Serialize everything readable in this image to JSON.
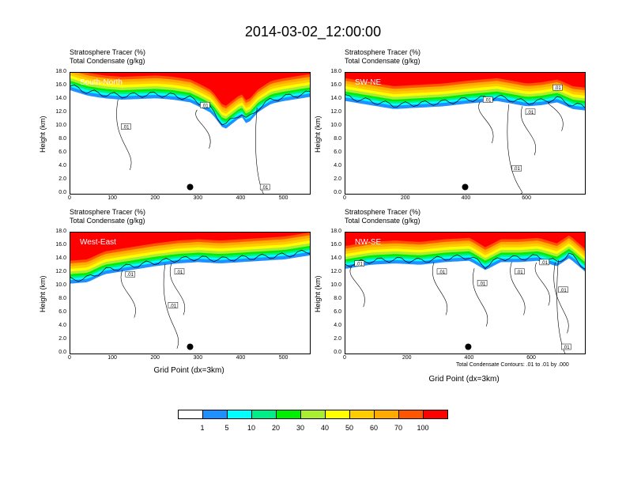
{
  "title": "2014-03-02_12:00:00",
  "field_labels": [
    "Stratosphere Tracer   (%)",
    "Total Condensate   (g/kg)"
  ],
  "y_axis_label": "Height (km)",
  "x_axis_label": "Grid Point (dx=3km)",
  "footnote": "Total Condensate Contours: .01 to .01 by .000",
  "colors": [
    "#ffffff",
    "#1e90ff",
    "#00ffff",
    "#00ee88",
    "#00ee00",
    "#aaee33",
    "#ffff00",
    "#ffcc00",
    "#ffaa00",
    "#ff5500",
    "#ff0000"
  ],
  "chart_data": [
    {
      "type": "heatmap",
      "panel_label": "South-North",
      "ylim": [
        0,
        18
      ],
      "xlim": [
        0,
        560
      ],
      "y_ticks": [
        "0.0",
        "2.0",
        "4.0",
        "6.0",
        "8.0",
        "10.0",
        "12.0",
        "14.0",
        "16.0",
        "18.0"
      ],
      "x_ticks": [
        0,
        100,
        200,
        300,
        400,
        500
      ],
      "tracer_top_profile": {
        "x": [
          0,
          40,
          80,
          120,
          160,
          200,
          240,
          280,
          300,
          330,
          360,
          380,
          400,
          410,
          420,
          440,
          470,
          500,
          540,
          560
        ],
        "h": [
          15.4,
          14.6,
          14.2,
          14.0,
          14.1,
          14.2,
          14.0,
          13.6,
          13.0,
          12.0,
          9.5,
          10.5,
          11.5,
          10.5,
          10.8,
          12.2,
          13.4,
          13.8,
          14.2,
          14.4
        ]
      },
      "contour_labels": [
        {
          "x": 130,
          "y": 10.0,
          "text": ".01"
        },
        {
          "x": 315,
          "y": 13.2,
          "text": ".01"
        },
        {
          "x": 455,
          "y": 1.0,
          "text": ".01"
        }
      ],
      "marker": {
        "x": 280,
        "y": 1.0
      }
    },
    {
      "type": "heatmap",
      "panel_label": "SW-NE",
      "ylim": [
        0,
        18
      ],
      "xlim": [
        0,
        790
      ],
      "y_ticks": [
        "0.0",
        "2.0",
        "4.0",
        "6.0",
        "8.0",
        "10.0",
        "12.0",
        "14.0",
        "16.0",
        "18.0"
      ],
      "x_ticks": [
        0,
        200,
        400,
        600
      ],
      "tracer_top_profile": {
        "x": [
          0,
          80,
          160,
          240,
          320,
          400,
          450,
          500,
          550,
          600,
          650,
          700,
          750,
          790
        ],
        "h": [
          13.8,
          13.2,
          12.6,
          12.8,
          13.0,
          13.4,
          13.6,
          13.8,
          13.4,
          13.0,
          13.2,
          13.6,
          12.6,
          12.4
        ]
      },
      "contour_labels": [
        {
          "x": 470,
          "y": 14.0,
          "text": ".01"
        },
        {
          "x": 610,
          "y": 12.2,
          "text": ".01"
        },
        {
          "x": 700,
          "y": 15.8,
          "text": ".01"
        },
        {
          "x": 565,
          "y": 3.8,
          "text": ".01"
        }
      ],
      "marker": {
        "x": 395,
        "y": 1.0
      }
    },
    {
      "type": "heatmap",
      "panel_label": "West-East",
      "ylim": [
        0,
        18
      ],
      "xlim": [
        0,
        560
      ],
      "y_ticks": [
        "0.0",
        "2.0",
        "4.0",
        "6.0",
        "8.0",
        "10.0",
        "12.0",
        "14.0",
        "16.0",
        "18.0"
      ],
      "x_ticks": [
        0,
        100,
        200,
        300,
        400,
        500
      ],
      "tracer_top_profile": {
        "x": [
          0,
          40,
          80,
          120,
          160,
          200,
          250,
          300,
          350,
          400,
          450,
          500,
          560
        ],
        "h": [
          10.4,
          10.6,
          11.8,
          12.2,
          12.6,
          13.0,
          13.4,
          13.6,
          13.4,
          13.6,
          13.8,
          14.0,
          14.6
        ]
      },
      "contour_labels": [
        {
          "x": 140,
          "y": 11.8,
          "text": ".01"
        },
        {
          "x": 255,
          "y": 12.2,
          "text": ".01"
        },
        {
          "x": 240,
          "y": 7.2,
          "text": ".01"
        }
      ],
      "marker": {
        "x": 280,
        "y": 1.0
      }
    },
    {
      "type": "heatmap",
      "panel_label": "NW-SE",
      "ylim": [
        0,
        18
      ],
      "xlim": [
        0,
        770
      ],
      "y_ticks": [
        "0.0",
        "2.0",
        "4.0",
        "6.0",
        "8.0",
        "10.0",
        "12.0",
        "14.0",
        "16.0",
        "18.0"
      ],
      "x_ticks": [
        0,
        200,
        400,
        600
      ],
      "tracer_top_profile": {
        "x": [
          0,
          80,
          160,
          240,
          320,
          400,
          450,
          500,
          560,
          620,
          680,
          720,
          770
        ],
        "h": [
          12.6,
          13.2,
          13.4,
          13.2,
          13.6,
          13.8,
          12.4,
          13.6,
          13.6,
          13.8,
          13.0,
          14.2,
          12.2
        ]
      },
      "contour_labels": [
        {
          "x": 45,
          "y": 13.4,
          "text": ".01"
        },
        {
          "x": 310,
          "y": 12.2,
          "text": ".01"
        },
        {
          "x": 440,
          "y": 10.5,
          "text": ".01"
        },
        {
          "x": 560,
          "y": 12.2,
          "text": ".01"
        },
        {
          "x": 640,
          "y": 13.6,
          "text": ".01"
        },
        {
          "x": 700,
          "y": 9.5,
          "text": ".01"
        },
        {
          "x": 710,
          "y": 1.0,
          "text": ".01"
        }
      ],
      "marker": {
        "x": 395,
        "y": 1.0
      }
    }
  ],
  "colorbar": {
    "labels": [
      "1",
      "5",
      "10",
      "20",
      "30",
      "40",
      "50",
      "60",
      "70",
      "100"
    ]
  }
}
